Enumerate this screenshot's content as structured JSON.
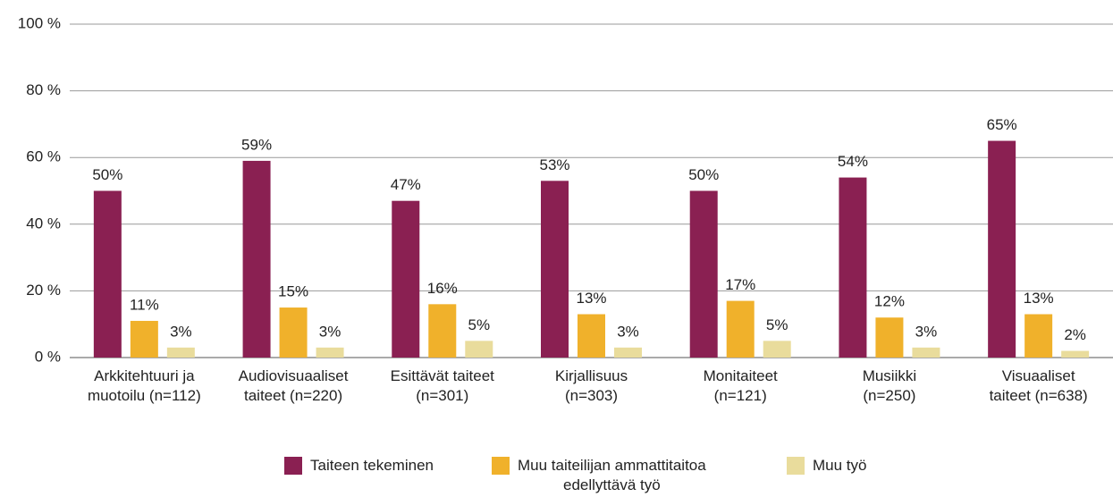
{
  "chart_data": {
    "type": "bar",
    "categories": [
      "Arkkitehtuuri ja\nmuotoilu (n=112)",
      "Audiovisuaaliset\ntaiteet (n=220)",
      "Esittävät taiteet\n(n=301)",
      "Kirjallisuus\n(n=303)",
      "Monitaiteet\n(n=121)",
      "Musiikki\n(n=250)",
      "Visuaaliset\ntaiteet (n=638)"
    ],
    "series": [
      {
        "name": "Taiteen tekeminen",
        "color": "#8a2052",
        "values": [
          50,
          59,
          47,
          53,
          50,
          54,
          65
        ],
        "value_labels": [
          "50%",
          "59%",
          "47%",
          "53%",
          "50%",
          "54%",
          "65%"
        ]
      },
      {
        "name": "Muu taiteilijan ammattitaitoa\nedellyttävä työ",
        "color": "#f0b12b",
        "values": [
          11,
          15,
          16,
          13,
          17,
          12,
          13
        ],
        "value_labels": [
          "11%",
          "15%",
          "16%",
          "13%",
          "17%",
          "12%",
          "13%"
        ]
      },
      {
        "name": "Muu työ",
        "color": "#e9dc9c",
        "values": [
          3,
          3,
          5,
          3,
          5,
          3,
          2
        ],
        "value_labels": [
          "3%",
          "3%",
          "5%",
          "3%",
          "5%",
          "3%",
          "2%"
        ]
      }
    ],
    "ylim": [
      0,
      100
    ],
    "yticks": [
      {
        "value": 0,
        "label": "0 %"
      },
      {
        "value": 20,
        "label": "20 %"
      },
      {
        "value": 40,
        "label": "40 %"
      },
      {
        "value": 60,
        "label": "60 %"
      },
      {
        "value": 80,
        "label": "80 %"
      },
      {
        "value": 100,
        "label": "100 %"
      }
    ],
    "grid": true,
    "legend": "bottom"
  }
}
